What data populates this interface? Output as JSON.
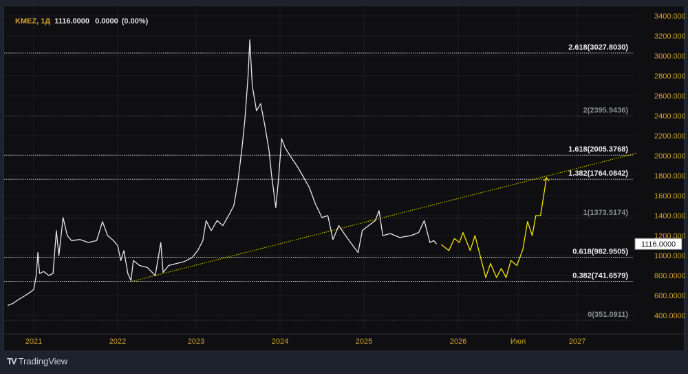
{
  "legend": {
    "symbol": "KMEZ, 1Д",
    "price": "1116.0000",
    "change": "0.0000",
    "change_pct": "(0.00%)"
  },
  "price_badge": "1116.0000",
  "brand": "TradingView",
  "colors": {
    "price": "#e8e8e8",
    "projection": "#f5e500",
    "trendline": "#e6d200",
    "axis_text": "#d4a52c",
    "fib_main": "#f0f0f0",
    "fib_dim": "#8a8d95"
  },
  "chart_data": {
    "type": "line",
    "y_ticks": [
      "3400.0000",
      "3200.0000",
      "3000.0000",
      "2800.0000",
      "2600.0000",
      "2400.0000",
      "2200.0000",
      "2000.0000",
      "1800.0000",
      "1600.0000",
      "1400.0000",
      "1200.0000",
      "1000.0000",
      "800.0000",
      "600.0000",
      "400.0000"
    ],
    "y_tick_values": [
      3400,
      3200,
      3000,
      2800,
      2600,
      2400,
      2200,
      2000,
      1800,
      1600,
      1400,
      1200,
      1000,
      800,
      600,
      400
    ],
    "x_ticks": [
      {
        "label": "2021",
        "t": 2021
      },
      {
        "label": "2022",
        "t": 2022
      },
      {
        "label": "2023",
        "t": 2023
      },
      {
        "label": "2024",
        "t": 2024
      },
      {
        "label": "2025",
        "t": 2025
      },
      {
        "label": "2026",
        "t": 2026
      },
      {
        "label": "Июл",
        "t": 2026.5
      },
      {
        "label": "2027",
        "t": 2027
      }
    ],
    "ylim": [
      300,
      3450
    ],
    "series": [
      {
        "name": "KMEZ",
        "points": [
          [
            2020.69,
            500
          ],
          [
            2020.75,
            520
          ],
          [
            2020.82,
            560
          ],
          [
            2020.9,
            600
          ],
          [
            2020.97,
            640
          ],
          [
            2021.0,
            660
          ],
          [
            2021.03,
            800
          ],
          [
            2021.05,
            1030
          ],
          [
            2021.07,
            820
          ],
          [
            2021.12,
            840
          ],
          [
            2021.18,
            800
          ],
          [
            2021.23,
            820
          ],
          [
            2021.27,
            1250
          ],
          [
            2021.3,
            1000
          ],
          [
            2021.35,
            1380
          ],
          [
            2021.4,
            1200
          ],
          [
            2021.45,
            1150
          ],
          [
            2021.55,
            1160
          ],
          [
            2021.65,
            1130
          ],
          [
            2021.75,
            1150
          ],
          [
            2021.82,
            1340
          ],
          [
            2021.88,
            1200
          ],
          [
            2021.95,
            1150
          ],
          [
            2022.0,
            1100
          ],
          [
            2022.04,
            950
          ],
          [
            2022.08,
            1050
          ],
          [
            2022.13,
            820
          ],
          [
            2022.17,
            750
          ],
          [
            2022.2,
            950
          ],
          [
            2022.28,
            900
          ],
          [
            2022.38,
            880
          ],
          [
            2022.48,
            800
          ],
          [
            2022.55,
            1130
          ],
          [
            2022.58,
            830
          ],
          [
            2022.65,
            900
          ],
          [
            2022.75,
            920
          ],
          [
            2022.85,
            940
          ],
          [
            2022.95,
            980
          ],
          [
            2023.02,
            1050
          ],
          [
            2023.08,
            1150
          ],
          [
            2023.12,
            1350
          ],
          [
            2023.18,
            1250
          ],
          [
            2023.25,
            1350
          ],
          [
            2023.32,
            1300
          ],
          [
            2023.4,
            1420
          ],
          [
            2023.45,
            1500
          ],
          [
            2023.5,
            1750
          ],
          [
            2023.55,
            2100
          ],
          [
            2023.58,
            2350
          ],
          [
            2023.62,
            2800
          ],
          [
            2023.64,
            3160
          ],
          [
            2023.67,
            2700
          ],
          [
            2023.72,
            2450
          ],
          [
            2023.77,
            2520
          ],
          [
            2023.82,
            2300
          ],
          [
            2023.87,
            2050
          ],
          [
            2023.9,
            1800
          ],
          [
            2023.95,
            1480
          ],
          [
            2023.98,
            1750
          ],
          [
            2024.02,
            2170
          ],
          [
            2024.06,
            2080
          ],
          [
            2024.12,
            2000
          ],
          [
            2024.2,
            1900
          ],
          [
            2024.27,
            1800
          ],
          [
            2024.35,
            1680
          ],
          [
            2024.42,
            1520
          ],
          [
            2024.5,
            1380
          ],
          [
            2024.57,
            1400
          ],
          [
            2024.63,
            1160
          ],
          [
            2024.7,
            1300
          ],
          [
            2024.78,
            1200
          ],
          [
            2024.85,
            1120
          ],
          [
            2024.93,
            1030
          ],
          [
            2024.98,
            1250
          ],
          [
            2025.05,
            1300
          ],
          [
            2025.12,
            1350
          ],
          [
            2025.16,
            1450
          ],
          [
            2025.2,
            1200
          ],
          [
            2025.28,
            1220
          ],
          [
            2025.38,
            1180
          ],
          [
            2025.5,
            1200
          ],
          [
            2025.58,
            1230
          ],
          [
            2025.64,
            1350
          ],
          [
            2025.7,
            1130
          ],
          [
            2025.74,
            1150
          ],
          [
            2025.77,
            1116
          ]
        ]
      },
      {
        "name": "Projection",
        "points": [
          [
            2025.82,
            1110
          ],
          [
            2025.9,
            1050
          ],
          [
            2025.96,
            1170
          ],
          [
            2026.01,
            1130
          ],
          [
            2026.04,
            1230
          ],
          [
            2026.1,
            1050
          ],
          [
            2026.14,
            1200
          ],
          [
            2026.23,
            780
          ],
          [
            2026.27,
            920
          ],
          [
            2026.32,
            780
          ],
          [
            2026.36,
            870
          ],
          [
            2026.4,
            780
          ],
          [
            2026.44,
            950
          ],
          [
            2026.49,
            900
          ],
          [
            2026.54,
            1060
          ],
          [
            2026.58,
            1340
          ],
          [
            2026.62,
            1200
          ],
          [
            2026.65,
            1400
          ],
          [
            2026.69,
            1400
          ],
          [
            2026.74,
            1780
          ]
        ]
      }
    ],
    "trendline": {
      "from": [
        2022.18,
        741
      ],
      "to": [
        2027.5,
        2025
      ]
    },
    "fib_levels": [
      {
        "label": "2.618(3027.8030)",
        "value": 3027.803,
        "main": true
      },
      {
        "label": "2(2395.9436)",
        "value": 2395.9436,
        "main": false
      },
      {
        "label": "1.618(2005.3768)",
        "value": 2005.3768,
        "main": true
      },
      {
        "label": "1.382(1764.0842)",
        "value": 1764.0842,
        "main": true
      },
      {
        "label": "1(1373.5174)",
        "value": 1373.5174,
        "main": false
      },
      {
        "label": "0.618(982.9505)",
        "value": 982.9505,
        "main": true
      },
      {
        "label": "0.382(741.6579)",
        "value": 741.6579,
        "main": true
      },
      {
        "label": "0(351.0911)",
        "value": 351.0911,
        "main": false
      }
    ]
  }
}
